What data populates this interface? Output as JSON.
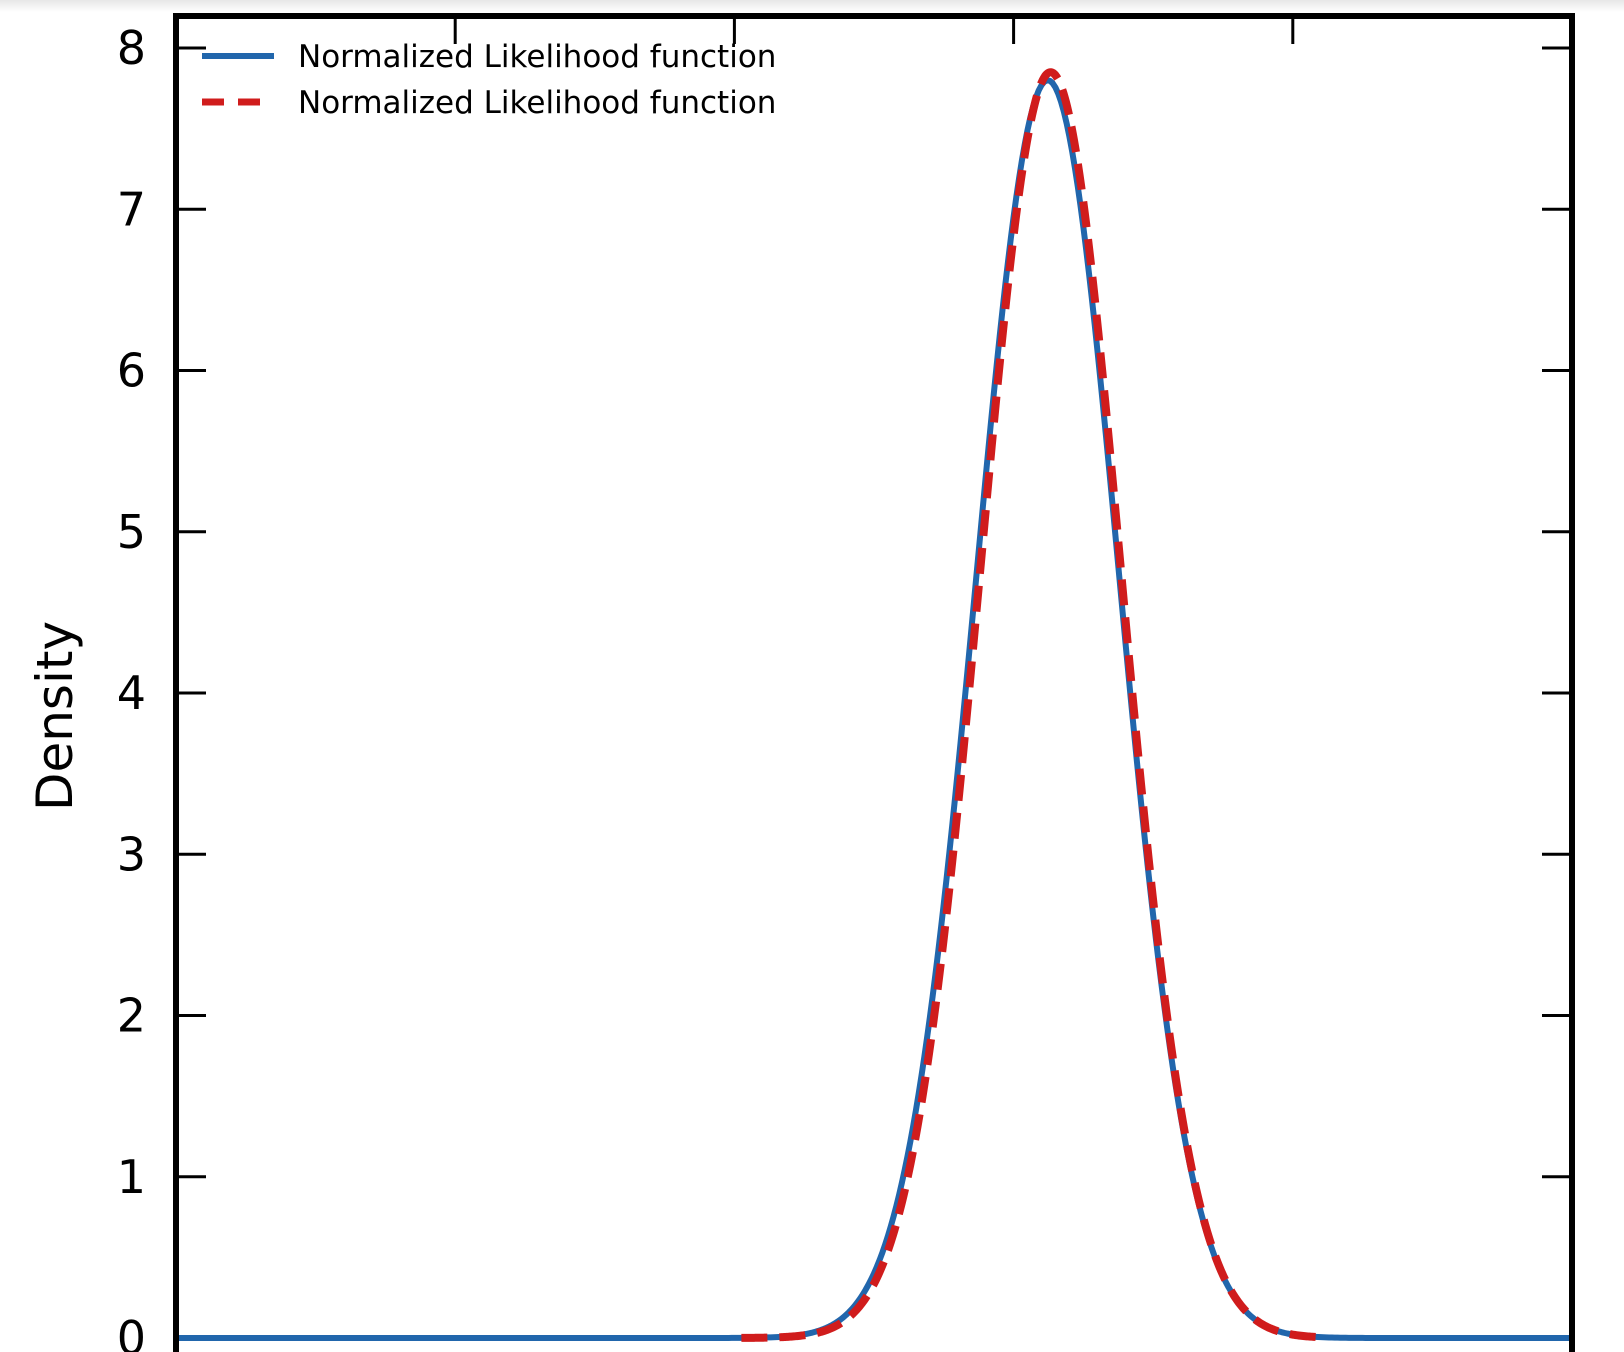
{
  "chart_data": {
    "type": "line",
    "title": "",
    "xlabel": "",
    "ylabel": "Density",
    "ylim": [
      0,
      8.2
    ],
    "yticks": [
      0,
      1,
      2,
      3,
      4,
      5,
      6,
      7,
      8
    ],
    "ytick_labels": [
      "0",
      "1",
      "2",
      "3",
      "4",
      "5",
      "6",
      "7",
      "8"
    ],
    "xtick_labels": [],
    "grid": false,
    "legend_placement": "top-left",
    "series": [
      {
        "name": "Normalized Likelihood function",
        "style": "solid",
        "color": "#2166ac",
        "mean": 0.6245,
        "sd": 0.0511,
        "peak": 7.8
      },
      {
        "name": "Normalized Likelihood function",
        "style": "dashed",
        "color": "#d01c1c",
        "mean": 0.6265,
        "sd": 0.0504,
        "peak": 7.85,
        "domain": [
          0.405,
          0.82
        ]
      }
    ]
  }
}
